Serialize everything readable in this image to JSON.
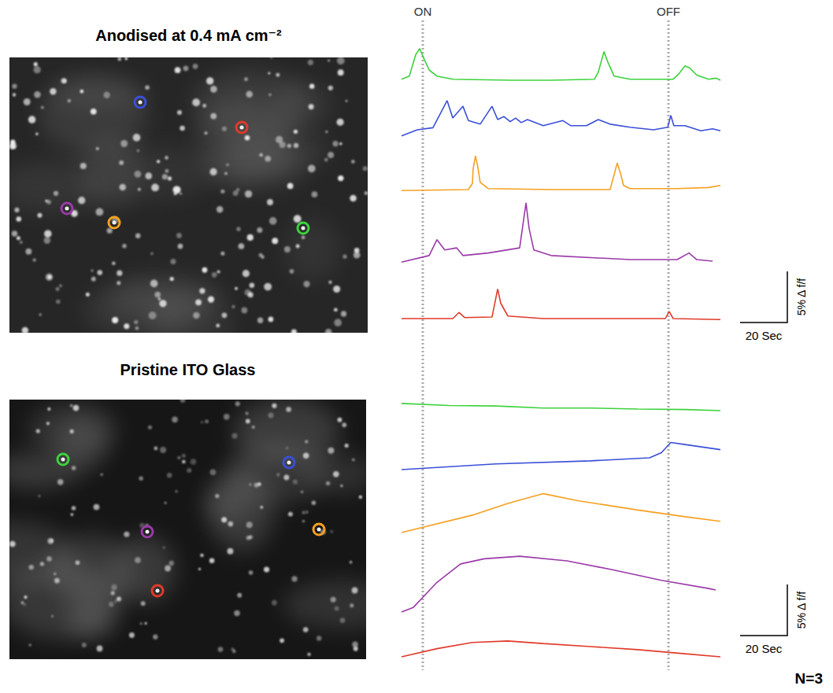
{
  "chart_data": [
    {
      "type": "line",
      "title": "Anodised at 0.4 mA cm⁻²",
      "xlim": [
        0,
        135
      ],
      "ylim": [
        -1,
        6
      ],
      "tick_labels": false,
      "grid": false,
      "series": [
        {
          "color": "#3cd23c",
          "x": [
            0,
            3.3,
            6,
            7.7,
            9.3,
            11.7,
            15,
            21.7,
            46.7,
            63.3,
            81.7,
            83.3,
            85.7,
            87.3,
            90,
            96.7,
            115,
            117.3,
            120,
            122,
            125,
            130,
            133.3,
            135
          ],
          "values": [
            0.1,
            0.4,
            2.5,
            3.1,
            2.2,
            1.0,
            0.4,
            0.1,
            0,
            0,
            0.1,
            0.8,
            2.8,
            1.8,
            0.4,
            0.1,
            0.1,
            0.6,
            1.4,
            1.2,
            0.5,
            0.1,
            0.2,
            0
          ]
        },
        {
          "color": "#3a4fd8",
          "x": [
            0,
            6.7,
            13.3,
            19.3,
            21.7,
            26,
            28.3,
            33.3,
            38.3,
            40.7,
            43.3,
            46,
            48.3,
            50.7,
            53.3,
            60,
            68.3,
            71.7,
            78.3,
            83.3,
            88.3,
            96.7,
            106.7,
            112.7,
            114,
            115.3,
            120,
            126.7,
            131.7,
            135
          ],
          "values": [
            -0.6,
            0,
            0.2,
            2.85,
            1.15,
            2.3,
            0.9,
            0.55,
            2.3,
            1.0,
            1.3,
            0.8,
            1.15,
            0.7,
            1.0,
            0.4,
            0.9,
            0.4,
            0.4,
            1.0,
            0.55,
            0.25,
            0,
            0.25,
            1.4,
            0.4,
            0.4,
            -0.1,
            0.1,
            -0.1
          ]
        },
        {
          "color": "#f5a020",
          "x": [
            0,
            28.3,
            30,
            30.3,
            31.3,
            32.3,
            33.3,
            36.7,
            63.3,
            88.3,
            89.7,
            91.3,
            92.7,
            94,
            96.7,
            116.7,
            130,
            135
          ],
          "values": [
            -0.1,
            0,
            0.6,
            2.0,
            3.3,
            2.2,
            0.7,
            0.1,
            0,
            0,
            1.2,
            2.6,
            1.6,
            0.4,
            0.1,
            0.1,
            0.2,
            0.4
          ]
        },
        {
          "color": "#9a3aa8",
          "x": [
            0,
            11.7,
            15,
            18.3,
            23.3,
            26,
            36.7,
            50,
            52.7,
            54,
            56,
            63.3,
            96.7,
            116.7,
            121.7,
            125,
            131.7
          ],
          "values": [
            -0.1,
            0.55,
            2.1,
            1.1,
            1.3,
            0.55,
            0.8,
            1.3,
            5.7,
            3.2,
            1.1,
            0.55,
            0.15,
            0.15,
            0.8,
            0.15,
            0
          ]
        },
        {
          "color": "#e03a2a",
          "x": [
            0,
            21.7,
            24.3,
            26.7,
            38.3,
            40.7,
            42,
            45,
            60,
            111.7,
            113.3,
            115,
            135
          ],
          "values": [
            0,
            0,
            0.6,
            0.1,
            0.15,
            2.9,
            1.5,
            0.25,
            0,
            0,
            0.7,
            0,
            -0.1
          ]
        }
      ],
      "scale_bar": {
        "x": 20,
        "x_label": "20 Sec",
        "y": 5,
        "y_label": "5% Δ f/f"
      }
    },
    {
      "type": "line",
      "title": "Pristine ITO Glass",
      "xlim": [
        0,
        135
      ],
      "ylim": [
        -1,
        6
      ],
      "tick_labels": false,
      "grid": false,
      "series": [
        {
          "color": "#3cd23c",
          "x": [
            0,
            20,
            40,
            60,
            80,
            100,
            120,
            135
          ],
          "values": [
            0.55,
            0.35,
            0.3,
            0.1,
            0.1,
            0,
            -0.05,
            -0.15
          ]
        },
        {
          "color": "#3a4fd8",
          "x": [
            0,
            40,
            80,
            105,
            110,
            114,
            120,
            135
          ],
          "values": [
            -0.15,
            0.4,
            0.7,
            1.0,
            1.5,
            2.5,
            2.3,
            1.8
          ]
        },
        {
          "color": "#f5a020",
          "x": [
            0,
            30,
            45,
            60,
            75,
            100,
            120,
            135
          ],
          "values": [
            0,
            1.7,
            2.85,
            3.8,
            3.1,
            2.2,
            1.55,
            1.1
          ]
        },
        {
          "color": "#9a3aa8",
          "x": [
            0,
            5,
            15,
            25,
            35,
            50,
            70,
            90,
            110,
            130,
            133
          ],
          "values": [
            0,
            0.45,
            2.9,
            4.7,
            5.2,
            5.45,
            5.0,
            4.1,
            3.1,
            2.3,
            2.15
          ]
        },
        {
          "color": "#e03a2a",
          "x": [
            0,
            15,
            30,
            45,
            60,
            80,
            100,
            120,
            135
          ],
          "values": [
            0,
            0.8,
            1.4,
            1.55,
            1.3,
            1.0,
            0.7,
            0.3,
            0
          ]
        }
      ],
      "scale_bar": {
        "x": 20,
        "x_label": "20 Sec",
        "y": 5,
        "y_label": "5% Δ f/f"
      }
    }
  ],
  "events": [
    {
      "x": 9,
      "label": "ON"
    },
    {
      "x": 113,
      "label": "OFF"
    }
  ],
  "annotation": "N=3"
}
